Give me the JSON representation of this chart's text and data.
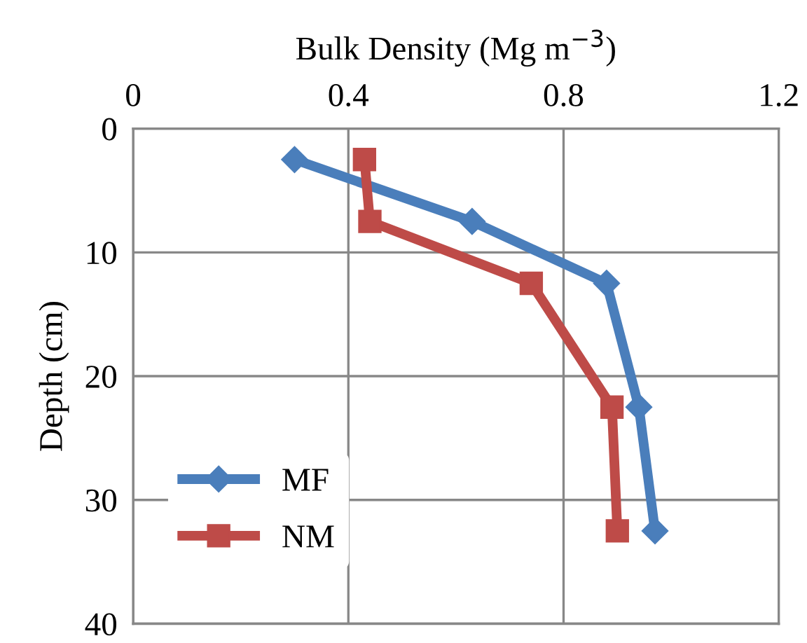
{
  "chart_data": {
    "type": "line",
    "xlabel": "Bulk Density (Mg m$^{−3}$)",
    "ylabel": "Depth (cm)",
    "xlim": [
      0,
      1.2
    ],
    "xticks": [
      0,
      0.4,
      0.8,
      1.2
    ],
    "ylim": [
      40,
      0
    ],
    "yticks": [
      0,
      10,
      20,
      30,
      40
    ],
    "grid": true,
    "legend": "bottom left",
    "series": [
      {
        "name": "MF",
        "color": "#4a7ebb",
        "marker": "diamond",
        "x": [
          0.3,
          0.63,
          0.88,
          0.94,
          0.97
        ],
        "values": [
          2.5,
          7.5,
          12.5,
          22.5,
          32.5
        ]
      },
      {
        "name": "NM",
        "color": "#be4b48",
        "marker": "square",
        "x": [
          0.43,
          0.44,
          0.74,
          0.89,
          0.9
        ],
        "values": [
          2.5,
          7.5,
          12.5,
          22.5,
          32.5
        ]
      }
    ]
  }
}
